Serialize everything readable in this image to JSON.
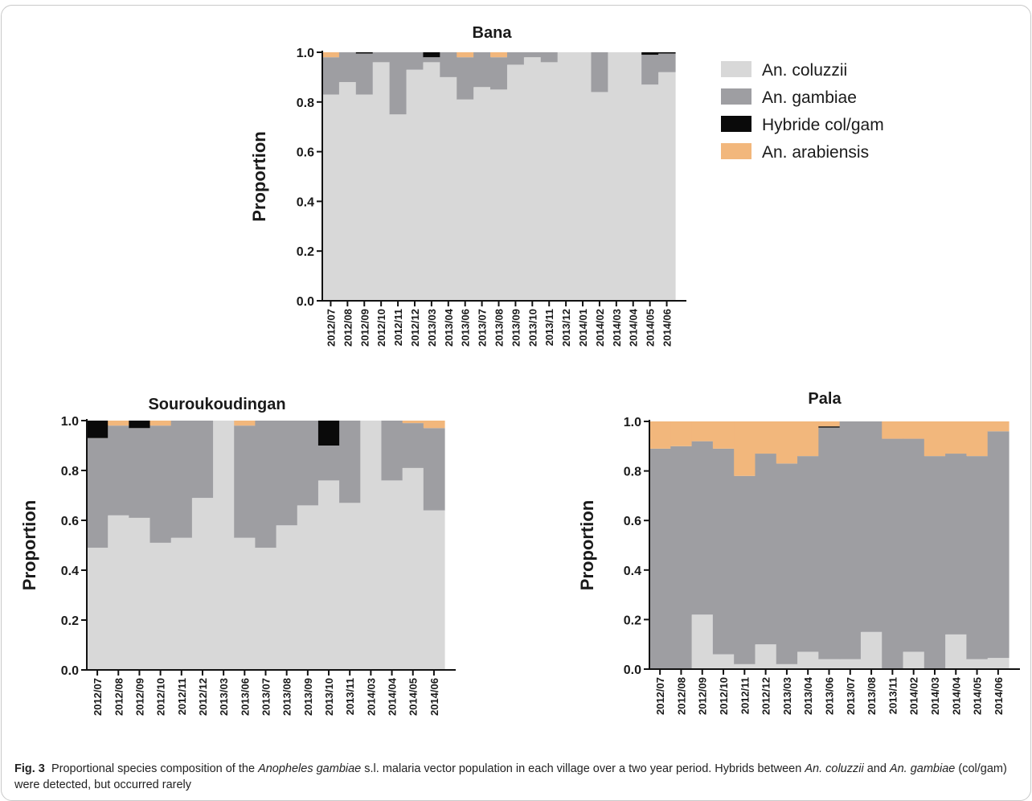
{
  "colors": {
    "An. coluzzii": "#d8d8d8",
    "An. gambiae": "#9e9ea2",
    "Hybride col/gam": "#0a0a0a",
    "An. arabiensis": "#f2b77c"
  },
  "legend": [
    "An. coluzzii",
    "An. gambiae",
    "Hybride col/gam",
    "An. arabiensis"
  ],
  "caption": {
    "fig_label": "Fig. 3",
    "p1": "Proportional species composition of the ",
    "italic1": "Anopheles gambiae",
    "p2": " s.l. malaria vector population in each village over a two year period. Hybrids between ",
    "italic2": "An. coluzzii",
    "p3": " and ",
    "italic3": "An. gambiae",
    "p4": " (col/gam) were detected, but occurred rarely"
  },
  "chart_data": [
    {
      "type": "bar",
      "stacked": true,
      "title": "Bana",
      "ylabel": "Proportion",
      "ylim": [
        0,
        1
      ],
      "yticks": [
        "0.0",
        "0.2",
        "0.4",
        "0.6",
        "0.8",
        "1.0"
      ],
      "categories": [
        "2012/07",
        "2012/08",
        "2012/09",
        "2012/10",
        "2012/11",
        "2012/12",
        "2013/03",
        "2013/04",
        "2013/06",
        "2013/07",
        "2013/08",
        "2013/09",
        "2013/10",
        "2013/11",
        "2013/12",
        "2014/01",
        "2014/02",
        "2014/03",
        "2014/04",
        "2014/05",
        "2014/06"
      ],
      "series": [
        {
          "name": "An. coluzzii",
          "values": [
            0.83,
            0.88,
            0.83,
            0.96,
            0.75,
            0.93,
            0.96,
            0.9,
            0.81,
            0.86,
            0.85,
            0.95,
            0.98,
            0.96,
            1.0,
            1.0,
            0.84,
            1.0,
            1.0,
            0.87,
            0.92
          ]
        },
        {
          "name": "An. gambiae",
          "values": [
            0.15,
            0.12,
            0.165,
            0.04,
            0.25,
            0.07,
            0.02,
            0.1,
            0.17,
            0.14,
            0.13,
            0.05,
            0.02,
            0.04,
            0.0,
            0.0,
            0.16,
            0.0,
            0.0,
            0.12,
            0.075
          ]
        },
        {
          "name": "Hybride col/gam",
          "values": [
            0.0,
            0.0,
            0.005,
            0.0,
            0.0,
            0.0,
            0.02,
            0.0,
            0.0,
            0.0,
            0.0,
            0.0,
            0.0,
            0.0,
            0.0,
            0.0,
            0.0,
            0.0,
            0.0,
            0.01,
            0.005
          ]
        },
        {
          "name": "An. arabiensis",
          "values": [
            0.02,
            0.0,
            0.0,
            0.0,
            0.0,
            0.0,
            0.0,
            0.0,
            0.02,
            0.0,
            0.02,
            0.0,
            0.0,
            0.0,
            0.0,
            0.0,
            0.0,
            0.0,
            0.0,
            0.0,
            0.0
          ]
        }
      ]
    },
    {
      "type": "bar",
      "stacked": true,
      "title": "Souroukoudingan",
      "ylabel": "Proportion",
      "ylim": [
        0,
        1
      ],
      "yticks": [
        "0.0",
        "0.2",
        "0.4",
        "0.6",
        "0.8",
        "1.0"
      ],
      "categories": [
        "2012/07",
        "2012/08",
        "2012/09",
        "2012/10",
        "2012/11",
        "2012/12",
        "2013/03",
        "2013/06",
        "2013/07",
        "2013/08",
        "2013/09",
        "2013/10",
        "2013/11",
        "2014/03",
        "2014/04",
        "2014/05",
        "2014/06"
      ],
      "series": [
        {
          "name": "An. coluzzii",
          "values": [
            0.49,
            0.62,
            0.61,
            0.51,
            0.53,
            0.69,
            1.0,
            0.53,
            0.49,
            0.58,
            0.66,
            0.76,
            0.67,
            1.0,
            0.76,
            0.81,
            0.64
          ]
        },
        {
          "name": "An. gambiae",
          "values": [
            0.44,
            0.36,
            0.36,
            0.47,
            0.47,
            0.31,
            0.0,
            0.45,
            0.51,
            0.42,
            0.34,
            0.14,
            0.33,
            0.0,
            0.24,
            0.18,
            0.33
          ]
        },
        {
          "name": "Hybride col/gam",
          "values": [
            0.07,
            0.0,
            0.03,
            0.0,
            0.0,
            0.0,
            0.0,
            0.0,
            0.0,
            0.0,
            0.0,
            0.1,
            0.0,
            0.0,
            0.0,
            0.0,
            0.0
          ]
        },
        {
          "name": "An. arabiensis",
          "values": [
            0.0,
            0.02,
            0.0,
            0.02,
            0.0,
            0.0,
            0.0,
            0.02,
            0.0,
            0.0,
            0.0,
            0.0,
            0.0,
            0.0,
            0.0,
            0.01,
            0.03
          ]
        }
      ]
    },
    {
      "type": "bar",
      "stacked": true,
      "title": "Pala",
      "ylabel": "Proportion",
      "ylim": [
        0,
        1
      ],
      "yticks": [
        "0.0",
        "0.2",
        "0.4",
        "0.6",
        "0.8",
        "1.0"
      ],
      "categories": [
        "2012/07",
        "2012/08",
        "2012/09",
        "2012/10",
        "2012/11",
        "2012/12",
        "2013/03",
        "2013/04",
        "2013/06",
        "2013/07",
        "2013/08",
        "2013/11",
        "2014/02",
        "2014/03",
        "2014/04",
        "2014/05",
        "2014/06"
      ],
      "series": [
        {
          "name": "An. coluzzii",
          "values": [
            0.0,
            0.0,
            0.22,
            0.06,
            0.02,
            0.1,
            0.02,
            0.07,
            0.04,
            0.04,
            0.15,
            0.0,
            0.07,
            0.0,
            0.14,
            0.04,
            0.045
          ]
        },
        {
          "name": "An. gambiae",
          "values": [
            0.89,
            0.9,
            0.7,
            0.83,
            0.76,
            0.77,
            0.81,
            0.79,
            0.935,
            0.96,
            0.85,
            0.93,
            0.86,
            0.86,
            0.73,
            0.82,
            0.915
          ]
        },
        {
          "name": "Hybride col/gam",
          "values": [
            0.0,
            0.0,
            0.0,
            0.0,
            0.0,
            0.0,
            0.0,
            0.0,
            0.005,
            0.0,
            0.0,
            0.0,
            0.0,
            0.0,
            0.0,
            0.0,
            0.0
          ]
        },
        {
          "name": "An. arabiensis",
          "values": [
            0.11,
            0.1,
            0.08,
            0.11,
            0.22,
            0.13,
            0.17,
            0.14,
            0.02,
            0.0,
            0.0,
            0.07,
            0.07,
            0.14,
            0.13,
            0.14,
            0.04
          ]
        }
      ]
    }
  ]
}
